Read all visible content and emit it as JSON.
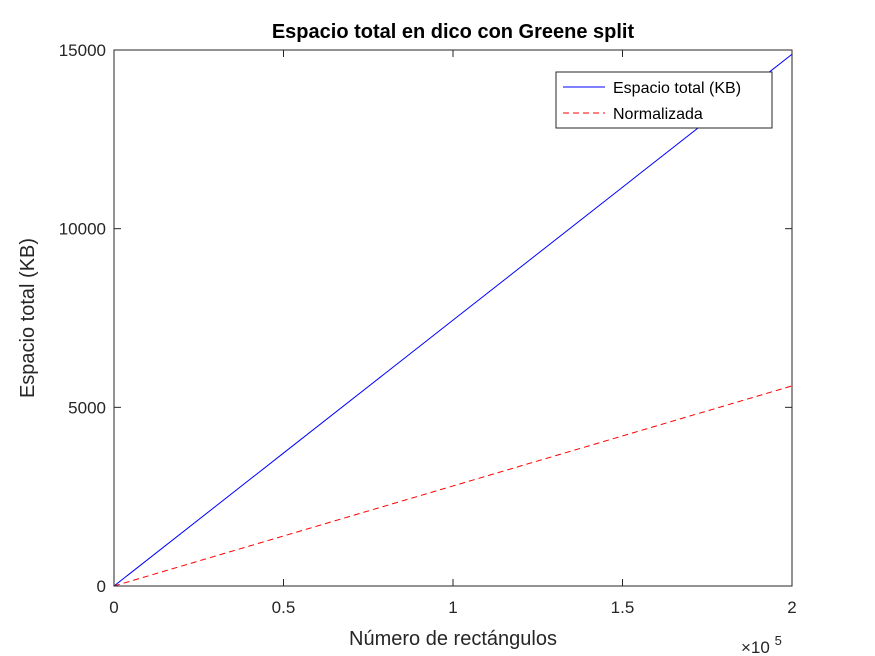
{
  "chart_data": {
    "type": "line",
    "title": "Espacio total en dico con Greene split",
    "xlabel": "Número de rectángulos",
    "ylabel": "Espacio total (KB)",
    "x_multiplier_label": "×10",
    "x_multiplier_exponent": "5",
    "xlim": [
      0,
      2
    ],
    "ylim": [
      0,
      15000
    ],
    "x_ticks": [
      0,
      0.5,
      1,
      1.5,
      2
    ],
    "x_tick_labels": [
      "0",
      "0.5",
      "1",
      "1.5",
      "2"
    ],
    "y_ticks": [
      0,
      5000,
      10000,
      15000
    ],
    "y_tick_labels": [
      "0",
      "5000",
      "10000",
      "15000"
    ],
    "grid": false,
    "legend_position": "top-right",
    "series": [
      {
        "name": "Espacio total (KB)",
        "color": "#0000ff",
        "style": "solid",
        "x": [
          0,
          0.5,
          1,
          1.5,
          2
        ],
        "values": [
          0,
          3720,
          7440,
          11160,
          14880
        ]
      },
      {
        "name": "Normalizada",
        "color": "#ff0000",
        "style": "dashed",
        "x": [
          0,
          0.5,
          1,
          1.5,
          2
        ],
        "values": [
          0,
          1400,
          2800,
          4200,
          5600
        ]
      }
    ]
  }
}
